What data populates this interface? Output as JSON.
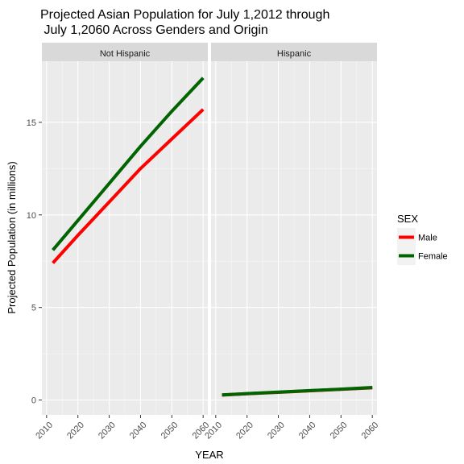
{
  "chart_data": {
    "type": "line",
    "title_lines": [
      "Projected Asian Population for July 1,2012 through",
      " July 1,2060 Across Genders and Origin"
    ],
    "xlabel": "YEAR",
    "ylabel": "Projected Population (in millions)",
    "xlim": [
      2010,
      2060
    ],
    "ylim": [
      0,
      17.5
    ],
    "x_ticks": [
      2010,
      2020,
      2030,
      2040,
      2050,
      2060
    ],
    "y_ticks": [
      0,
      5,
      10,
      15
    ],
    "grid": true,
    "legend": {
      "title": "SEX",
      "placement": "right",
      "entries": [
        {
          "name": "Male",
          "color": "#ff0000"
        },
        {
          "name": "Female",
          "color": "#006400"
        }
      ]
    },
    "panels": [
      {
        "label": "Not Hispanic",
        "series": [
          {
            "name": "Male",
            "color": "#ff0000",
            "x": [
              2012,
              2020,
              2030,
              2040,
              2050,
              2060
            ],
            "y": [
              7.4,
              8.9,
              10.7,
              12.5,
              14.1,
              15.7
            ]
          },
          {
            "name": "Female",
            "color": "#006400",
            "x": [
              2012,
              2020,
              2030,
              2040,
              2050,
              2060
            ],
            "y": [
              8.1,
              9.7,
              11.7,
              13.7,
              15.6,
              17.4
            ]
          }
        ]
      },
      {
        "label": "Hispanic",
        "series": [
          {
            "name": "Male",
            "color": "#ff0000",
            "x": [
              2012,
              2020,
              2030,
              2040,
              2050,
              2060
            ],
            "y": [
              0.27,
              0.34,
              0.42,
              0.5,
              0.58,
              0.66
            ]
          },
          {
            "name": "Female",
            "color": "#006400",
            "x": [
              2012,
              2020,
              2030,
              2040,
              2050,
              2060
            ],
            "y": [
              0.28,
              0.35,
              0.43,
              0.51,
              0.59,
              0.68
            ]
          }
        ]
      }
    ]
  }
}
